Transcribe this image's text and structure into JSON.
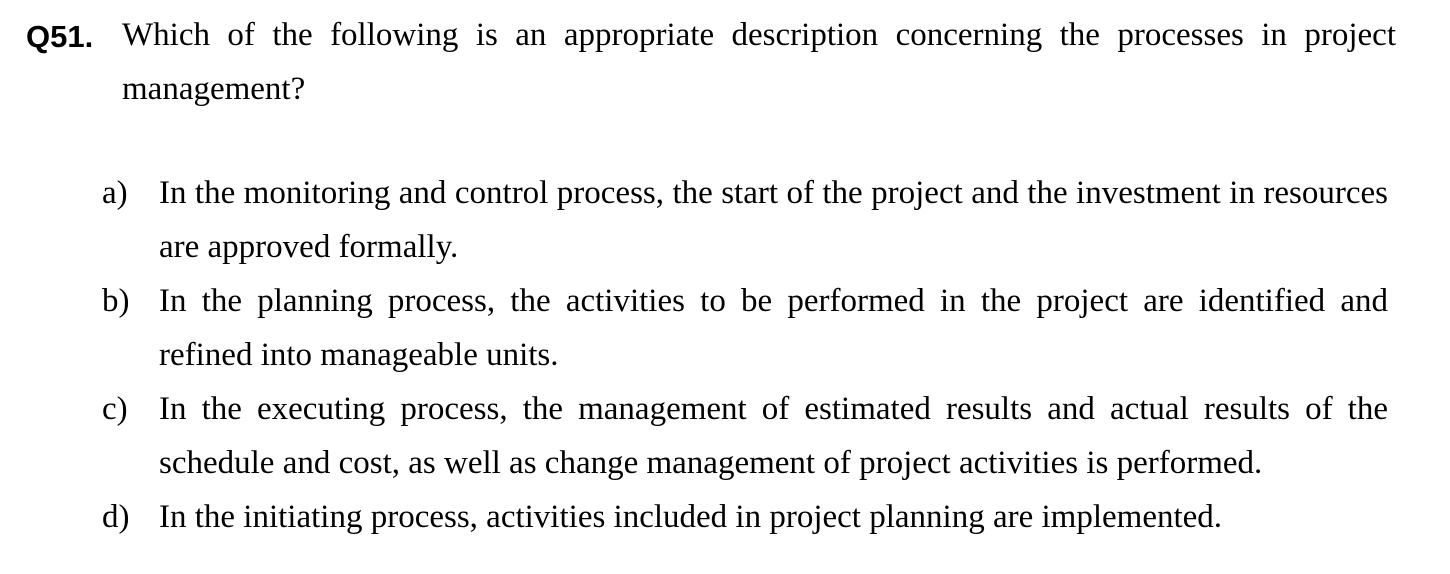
{
  "question": {
    "number": "Q51.",
    "text": "Which of the following is an appropriate description concerning the processes in project management?"
  },
  "options": [
    {
      "letter": "a)",
      "text": "In the monitoring and control process, the start of the project and the investment in resources are approved formally."
    },
    {
      "letter": "b)",
      "text": "In the planning process, the activities to be performed in the project are identified and refined into manageable units."
    },
    {
      "letter": "c)",
      "text": "In the executing process, the management of estimated results and actual results of the schedule and cost, as well as change management of project activities is performed."
    },
    {
      "letter": "d)",
      "text": "In the initiating process, activities included in project planning are implemented."
    }
  ]
}
